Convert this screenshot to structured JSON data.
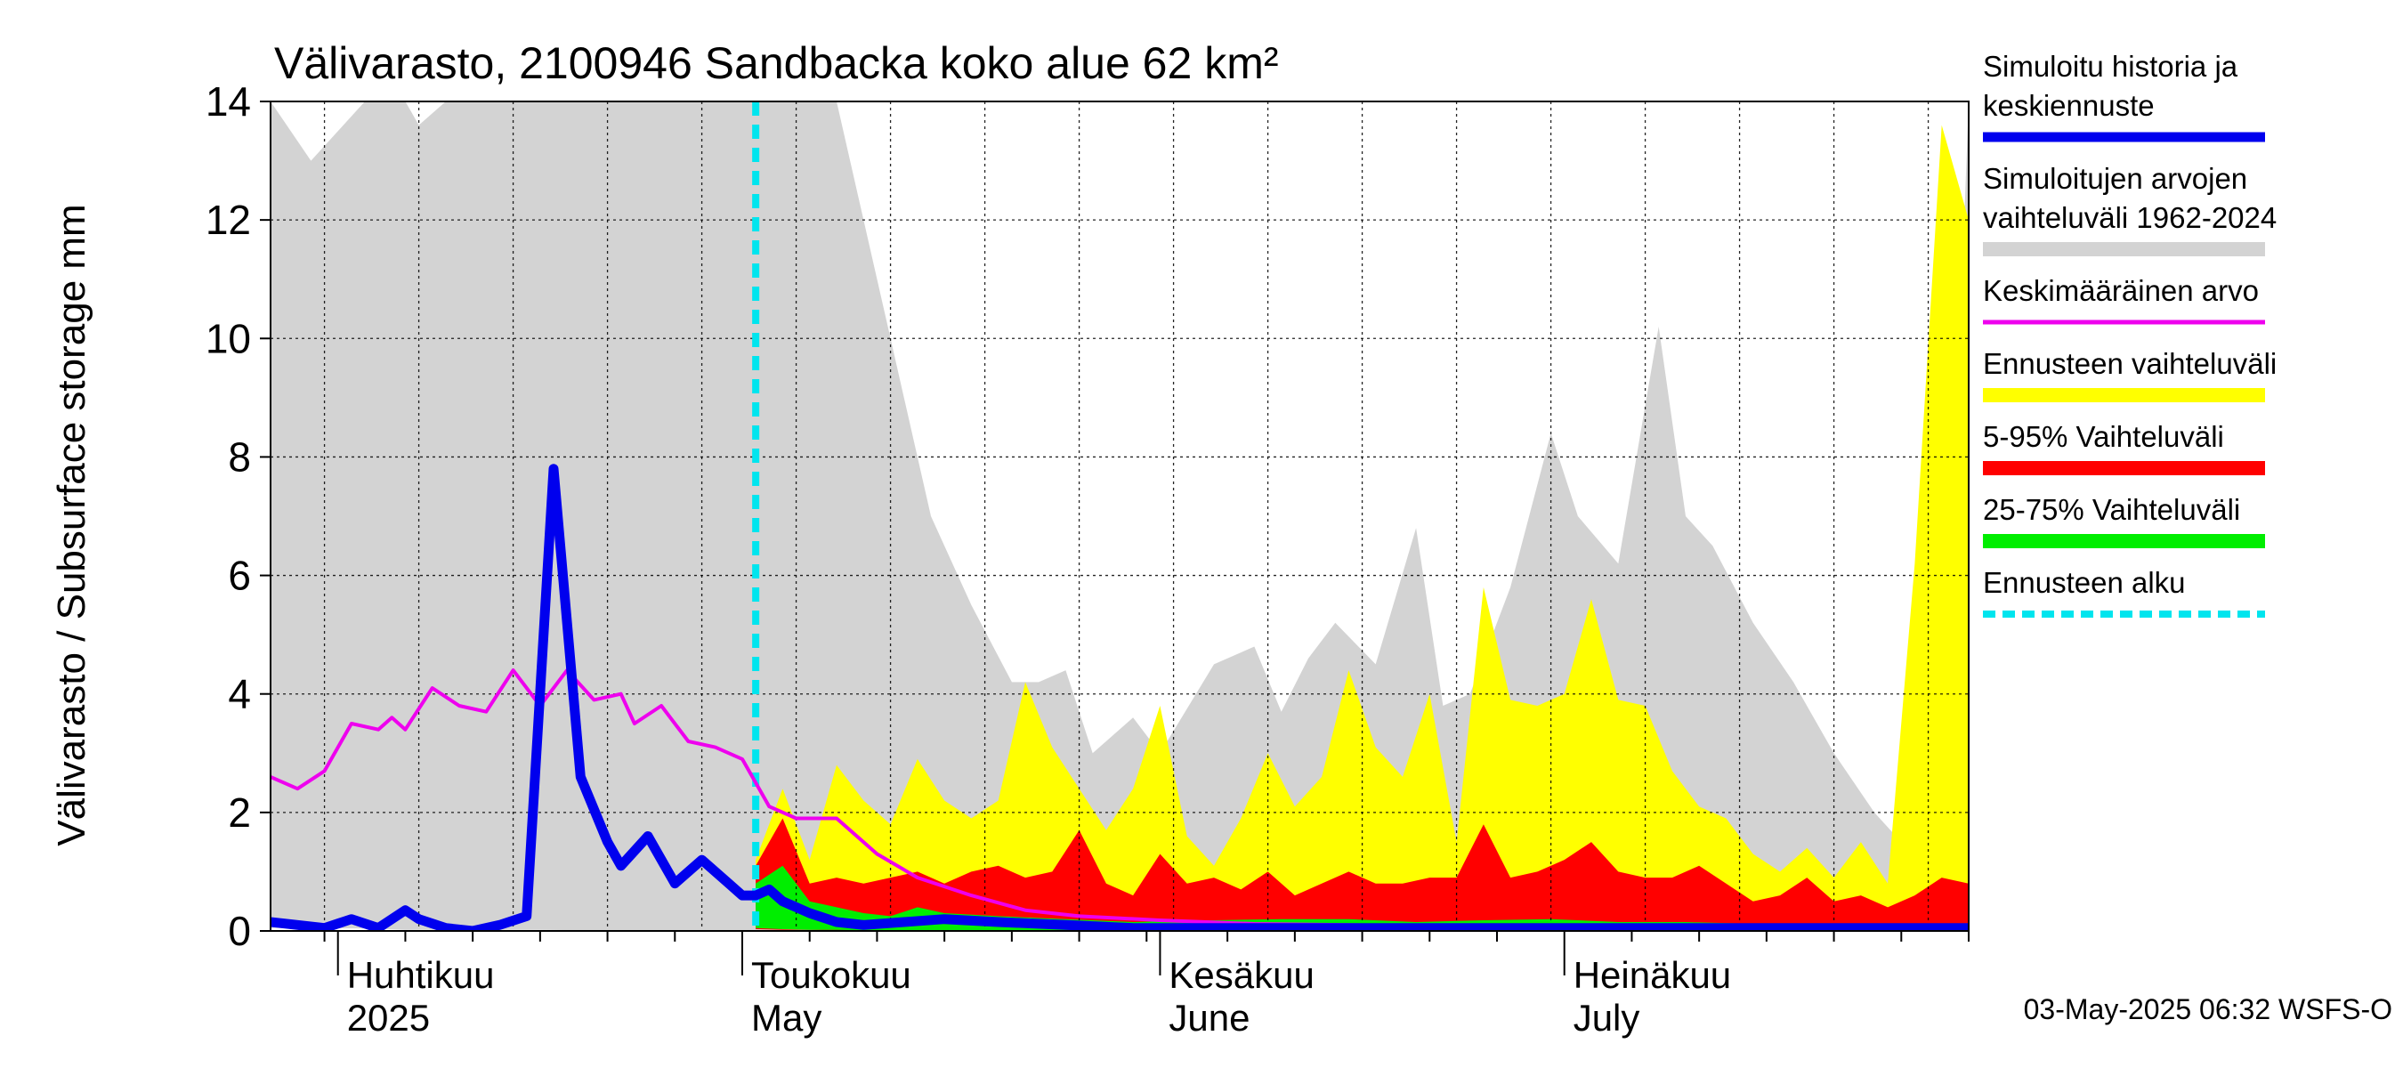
{
  "chart_data": {
    "type": "area",
    "title": "Välivarasto, 2100946 Sandbacka koko alue 62 km²",
    "ylabel": "Välivarasto / Subsurface storage  mm",
    "ylim": [
      0,
      14
    ],
    "yticks": [
      "0",
      "2",
      "4",
      "6",
      "8",
      "10",
      "12",
      "14"
    ],
    "x_range": [
      "2025-03-27",
      "2025-07-31"
    ],
    "forecast_start": "2025-05-02",
    "grid": true,
    "legend_position": "right",
    "month_labels": [
      {
        "date": "2025-04-01",
        "fi": "Huhtikuu",
        "en": "2025"
      },
      {
        "date": "2025-05-01",
        "fi": "Toukokuu",
        "en": "May"
      },
      {
        "date": "2025-06-01",
        "fi": "Kesäkuu",
        "en": "June"
      },
      {
        "date": "2025-07-01",
        "fi": "Heinäkuu",
        "en": "July"
      }
    ],
    "legend": [
      {
        "id": "history",
        "label_lines": [
          "Simuloitu historia ja",
          "keskiennuste"
        ],
        "color": "#0000ee",
        "style": "line"
      },
      {
        "id": "range",
        "label_lines": [
          "Simuloitujen arvojen",
          "vaihteluväli 1962-2024"
        ],
        "color": "#d3d3d3",
        "style": "band"
      },
      {
        "id": "mean",
        "label_lines": [
          "Keskimääräinen arvo"
        ],
        "color": "#ee00ee",
        "style": "line"
      },
      {
        "id": "fc_range",
        "label_lines": [
          "Ennusteen vaihteluväli"
        ],
        "color": "#ffff00",
        "style": "band"
      },
      {
        "id": "p5_95",
        "label_lines": [
          "5-95% Vaihteluväli"
        ],
        "color": "#ff0000",
        "style": "band"
      },
      {
        "id": "p25_75",
        "label_lines": [
          "25-75% Vaihteluväli"
        ],
        "color": "#00ee00",
        "style": "band"
      },
      {
        "id": "fc_start",
        "label_lines": [
          "Ennusteen alku"
        ],
        "color": "#00e5ee",
        "style": "dashed"
      }
    ],
    "series": [
      {
        "id": "range",
        "kind": "band",
        "color": "#d3d3d3",
        "x": [
          "2025-03-27",
          "2025-03-30",
          "2025-04-03",
          "2025-04-06",
          "2025-04-07",
          "2025-04-09",
          "2025-04-14",
          "2025-04-16",
          "2025-04-20",
          "2025-04-25",
          "2025-04-29",
          "2025-05-03",
          "2025-05-08",
          "2025-05-12",
          "2025-05-15",
          "2025-05-18",
          "2025-05-21",
          "2025-05-23",
          "2025-05-25",
          "2025-05-27",
          "2025-05-30",
          "2025-06-01",
          "2025-06-05",
          "2025-06-08",
          "2025-06-10",
          "2025-06-12",
          "2025-06-14",
          "2025-06-17",
          "2025-06-20",
          "2025-06-22",
          "2025-06-24",
          "2025-06-27",
          "2025-06-30",
          "2025-07-02",
          "2025-07-05",
          "2025-07-08",
          "2025-07-10",
          "2025-07-12",
          "2025-07-15",
          "2025-07-18",
          "2025-07-21",
          "2025-07-24",
          "2025-07-26",
          "2025-07-28",
          "2025-07-29",
          "2025-07-31"
        ],
        "low": [
          0.05,
          0.05,
          0.04,
          0.02,
          0.02,
          0.02,
          0.02,
          0.02,
          0.01,
          0.01,
          0.01,
          0.01,
          0.01,
          0.01,
          0.01,
          0.01,
          0.01,
          0.01,
          0.01,
          0.01,
          0.01,
          0.01,
          0.01,
          0.01,
          0.01,
          0.01,
          0.01,
          0.01,
          0.01,
          0.01,
          0.01,
          0.01,
          0.01,
          0.01,
          0.01,
          0.01,
          0.01,
          0.01,
          0.01,
          0.01,
          0.01,
          0.01,
          0.01,
          0.01,
          0.01,
          0.01
        ],
        "high": [
          14,
          13,
          14,
          14,
          13.6,
          14,
          14,
          14,
          14,
          14,
          14,
          14,
          14,
          10,
          7,
          5.5,
          4.2,
          4.2,
          4.4,
          3,
          3.6,
          3,
          4.5,
          4.8,
          3.7,
          4.6,
          5.2,
          4.5,
          6.8,
          3.8,
          4,
          5.8,
          8.4,
          7,
          6.2,
          10.2,
          7,
          6.5,
          5.2,
          4.2,
          3,
          2,
          1.5,
          2.3,
          1.8,
          14
        ]
      },
      {
        "id": "fc_range",
        "kind": "band",
        "color": "#ffff00",
        "x": [
          "2025-05-02",
          "2025-05-04",
          "2025-05-06",
          "2025-05-08",
          "2025-05-10",
          "2025-05-12",
          "2025-05-14",
          "2025-05-16",
          "2025-05-18",
          "2025-05-20",
          "2025-05-22",
          "2025-05-24",
          "2025-05-26",
          "2025-05-28",
          "2025-05-30",
          "2025-06-01",
          "2025-06-03",
          "2025-06-05",
          "2025-06-07",
          "2025-06-09",
          "2025-06-11",
          "2025-06-13",
          "2025-06-15",
          "2025-06-17",
          "2025-06-19",
          "2025-06-21",
          "2025-06-23",
          "2025-06-25",
          "2025-06-27",
          "2025-06-29",
          "2025-07-01",
          "2025-07-03",
          "2025-07-05",
          "2025-07-07",
          "2025-07-09",
          "2025-07-11",
          "2025-07-13",
          "2025-07-15",
          "2025-07-17",
          "2025-07-19",
          "2025-07-21",
          "2025-07-23",
          "2025-07-25",
          "2025-07-27",
          "2025-07-29",
          "2025-07-31"
        ],
        "low": [
          0.05,
          0.04,
          0.03,
          0.02,
          0.02,
          0.02,
          0.01,
          0.01,
          0.01,
          0.01,
          0.01,
          0.01,
          0.01,
          0.01,
          0.01,
          0.01,
          0.01,
          0.01,
          0.01,
          0.01,
          0.01,
          0.01,
          0.01,
          0.01,
          0.01,
          0.01,
          0.01,
          0.01,
          0.01,
          0.01,
          0.01,
          0.01,
          0.01,
          0.01,
          0.01,
          0.01,
          0.01,
          0.01,
          0.01,
          0.01,
          0.01,
          0.01,
          0.01,
          0.01,
          0.01,
          0.01
        ],
        "high": [
          1.2,
          2.4,
          1.2,
          2.8,
          2.2,
          1.8,
          2.9,
          2.2,
          1.9,
          2.2,
          4.2,
          3.1,
          2.4,
          1.7,
          2.4,
          3.8,
          1.6,
          1.1,
          1.9,
          3,
          2.1,
          2.6,
          4.4,
          3.1,
          2.6,
          4,
          1.5,
          5.8,
          3.9,
          3.8,
          4,
          5.6,
          3.9,
          3.8,
          2.7,
          2.1,
          1.9,
          1.3,
          1.0,
          1.4,
          0.9,
          1.5,
          0.8,
          6.2,
          13.6,
          12
        ]
      },
      {
        "id": "p5_95",
        "kind": "band",
        "color": "#ff0000",
        "x": [
          "2025-05-02",
          "2025-05-04",
          "2025-05-06",
          "2025-05-08",
          "2025-05-10",
          "2025-05-12",
          "2025-05-14",
          "2025-05-16",
          "2025-05-18",
          "2025-05-20",
          "2025-05-22",
          "2025-05-24",
          "2025-05-26",
          "2025-05-28",
          "2025-05-30",
          "2025-06-01",
          "2025-06-03",
          "2025-06-05",
          "2025-06-07",
          "2025-06-09",
          "2025-06-11",
          "2025-06-13",
          "2025-06-15",
          "2025-06-17",
          "2025-06-19",
          "2025-06-21",
          "2025-06-23",
          "2025-06-25",
          "2025-06-27",
          "2025-06-29",
          "2025-07-01",
          "2025-07-03",
          "2025-07-05",
          "2025-07-07",
          "2025-07-09",
          "2025-07-11",
          "2025-07-13",
          "2025-07-15",
          "2025-07-17",
          "2025-07-19",
          "2025-07-21",
          "2025-07-23",
          "2025-07-25",
          "2025-07-27",
          "2025-07-29",
          "2025-07-31"
        ],
        "low": [
          0.03,
          0.02,
          0.02,
          0.01,
          0.01,
          0.01,
          0.01,
          0.01,
          0.01,
          0.01,
          0.01,
          0.01,
          0.01,
          0.01,
          0.01,
          0.01,
          0.01,
          0.01,
          0.01,
          0.01,
          0.01,
          0.01,
          0.01,
          0.01,
          0.01,
          0.01,
          0.01,
          0.01,
          0.01,
          0.01,
          0.01,
          0.01,
          0.01,
          0.01,
          0.01,
          0.01,
          0.01,
          0.01,
          0.01,
          0.01,
          0.01,
          0.01,
          0.01,
          0.01,
          0.01,
          0.01
        ],
        "high": [
          1.1,
          1.9,
          0.8,
          0.9,
          0.8,
          0.9,
          1.0,
          0.8,
          1.0,
          1.1,
          0.9,
          1.0,
          1.7,
          0.8,
          0.6,
          1.3,
          0.8,
          0.9,
          0.7,
          1.0,
          0.6,
          0.8,
          1.0,
          0.8,
          0.8,
          0.9,
          0.9,
          1.8,
          0.9,
          1.0,
          1.2,
          1.5,
          1.0,
          0.9,
          0.9,
          1.1,
          0.8,
          0.5,
          0.6,
          0.9,
          0.5,
          0.6,
          0.4,
          0.6,
          0.9,
          0.8
        ]
      },
      {
        "id": "p25_75",
        "kind": "band",
        "color": "#00ee00",
        "x": [
          "2025-05-02",
          "2025-05-04",
          "2025-05-06",
          "2025-05-08",
          "2025-05-10",
          "2025-05-12",
          "2025-05-14",
          "2025-05-16",
          "2025-05-20",
          "2025-05-25",
          "2025-05-30",
          "2025-06-05",
          "2025-06-10",
          "2025-06-15",
          "2025-06-20",
          "2025-06-25",
          "2025-06-30",
          "2025-07-05",
          "2025-07-10",
          "2025-07-15",
          "2025-07-20",
          "2025-07-25",
          "2025-07-31"
        ],
        "low": [
          0.05,
          0.03,
          0.02,
          0.02,
          0.01,
          0.01,
          0.01,
          0.01,
          0.01,
          0.01,
          0.01,
          0.01,
          0.01,
          0.01,
          0.01,
          0.01,
          0.01,
          0.01,
          0.01,
          0.01,
          0.01,
          0.01,
          0.01
        ],
        "high": [
          0.8,
          1.1,
          0.5,
          0.4,
          0.3,
          0.25,
          0.4,
          0.3,
          0.25,
          0.2,
          0.15,
          0.18,
          0.2,
          0.2,
          0.15,
          0.18,
          0.2,
          0.15,
          0.15,
          0.12,
          0.1,
          0.1,
          0.1
        ]
      },
      {
        "id": "mean",
        "kind": "line",
        "color": "#ee00ee",
        "x": [
          "2025-03-27",
          "2025-03-29",
          "2025-03-31",
          "2025-04-02",
          "2025-04-04",
          "2025-04-05",
          "2025-04-06",
          "2025-04-08",
          "2025-04-10",
          "2025-04-12",
          "2025-04-14",
          "2025-04-16",
          "2025-04-18",
          "2025-04-20",
          "2025-04-22",
          "2025-04-23",
          "2025-04-25",
          "2025-04-27",
          "2025-04-29",
          "2025-05-01",
          "2025-05-03",
          "2025-05-05",
          "2025-05-08",
          "2025-05-11",
          "2025-05-14",
          "2025-05-18",
          "2025-05-22",
          "2025-05-26",
          "2025-06-01",
          "2025-06-08",
          "2025-06-15",
          "2025-06-22",
          "2025-07-01",
          "2025-07-10",
          "2025-07-20",
          "2025-07-31"
        ],
        "y": [
          2.6,
          2.4,
          2.7,
          3.5,
          3.4,
          3.6,
          3.4,
          4.1,
          3.8,
          3.7,
          4.4,
          3.8,
          4.4,
          3.9,
          4.0,
          3.5,
          3.8,
          3.2,
          3.1,
          2.9,
          2.1,
          1.9,
          1.9,
          1.3,
          0.9,
          0.6,
          0.35,
          0.25,
          0.18,
          0.12,
          0.1,
          0.08,
          0.06,
          0.06,
          0.05,
          0.05
        ]
      },
      {
        "id": "history",
        "kind": "line",
        "color": "#0000ee",
        "x": [
          "2025-03-27",
          "2025-03-29",
          "2025-03-31",
          "2025-04-02",
          "2025-04-04",
          "2025-04-06",
          "2025-04-07",
          "2025-04-09",
          "2025-04-11",
          "2025-04-13",
          "2025-04-15",
          "2025-04-17",
          "2025-04-19",
          "2025-04-21",
          "2025-04-22",
          "2025-04-24",
          "2025-04-26",
          "2025-04-28",
          "2025-04-30",
          "2025-05-01",
          "2025-05-02",
          "2025-05-03",
          "2025-05-04",
          "2025-05-06",
          "2025-05-08",
          "2025-05-10",
          "2025-05-13",
          "2025-05-16",
          "2025-05-20",
          "2025-05-25",
          "2025-05-30",
          "2025-06-05",
          "2025-06-15",
          "2025-06-25",
          "2025-07-05",
          "2025-07-15",
          "2025-07-31"
        ],
        "y": [
          0.15,
          0.1,
          0.05,
          0.2,
          0.05,
          0.35,
          0.2,
          0.05,
          0.0,
          0.1,
          0.25,
          7.8,
          2.6,
          1.5,
          1.1,
          1.6,
          0.8,
          1.2,
          0.8,
          0.6,
          0.6,
          0.7,
          0.5,
          0.3,
          0.15,
          0.1,
          0.15,
          0.2,
          0.15,
          0.1,
          0.05,
          0.05,
          0.05,
          0.05,
          0.05,
          0.05,
          0.05
        ]
      }
    ]
  },
  "timestamp": "03-May-2025 06:32 WSFS-O"
}
